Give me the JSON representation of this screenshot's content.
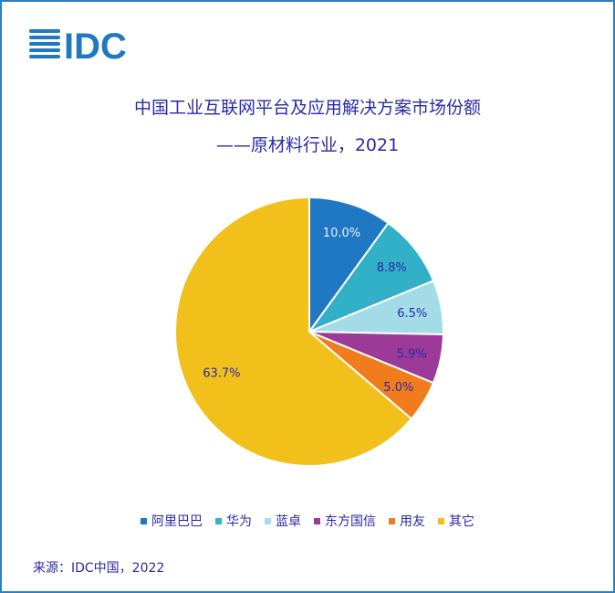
{
  "logo_text": "IDC",
  "title_line1": "中国工业互联网平台及应用解决方案市场份额",
  "title_line2": "——原材料行业，2021",
  "source": "来源：IDC中国，2022",
  "chart_data": {
    "type": "pie",
    "title": "中国工业互联网平台及应用解决方案市场份额——原材料行业，2021",
    "legend_position": "bottom",
    "categories": [
      "阿里巴巴",
      "华为",
      "蓝卓",
      "东方国信",
      "用友",
      "其它"
    ],
    "values": [
      10.0,
      8.8,
      6.5,
      5.9,
      5.0,
      63.7
    ],
    "labels": [
      "10.0%",
      "8.8%",
      "6.5%",
      "5.9%",
      "5.0%",
      "63.7%"
    ],
    "colors": [
      "#1f78c1",
      "#31b0c8",
      "#a3dce6",
      "#9b3a97",
      "#f07c1e",
      "#f2c01a"
    ]
  }
}
